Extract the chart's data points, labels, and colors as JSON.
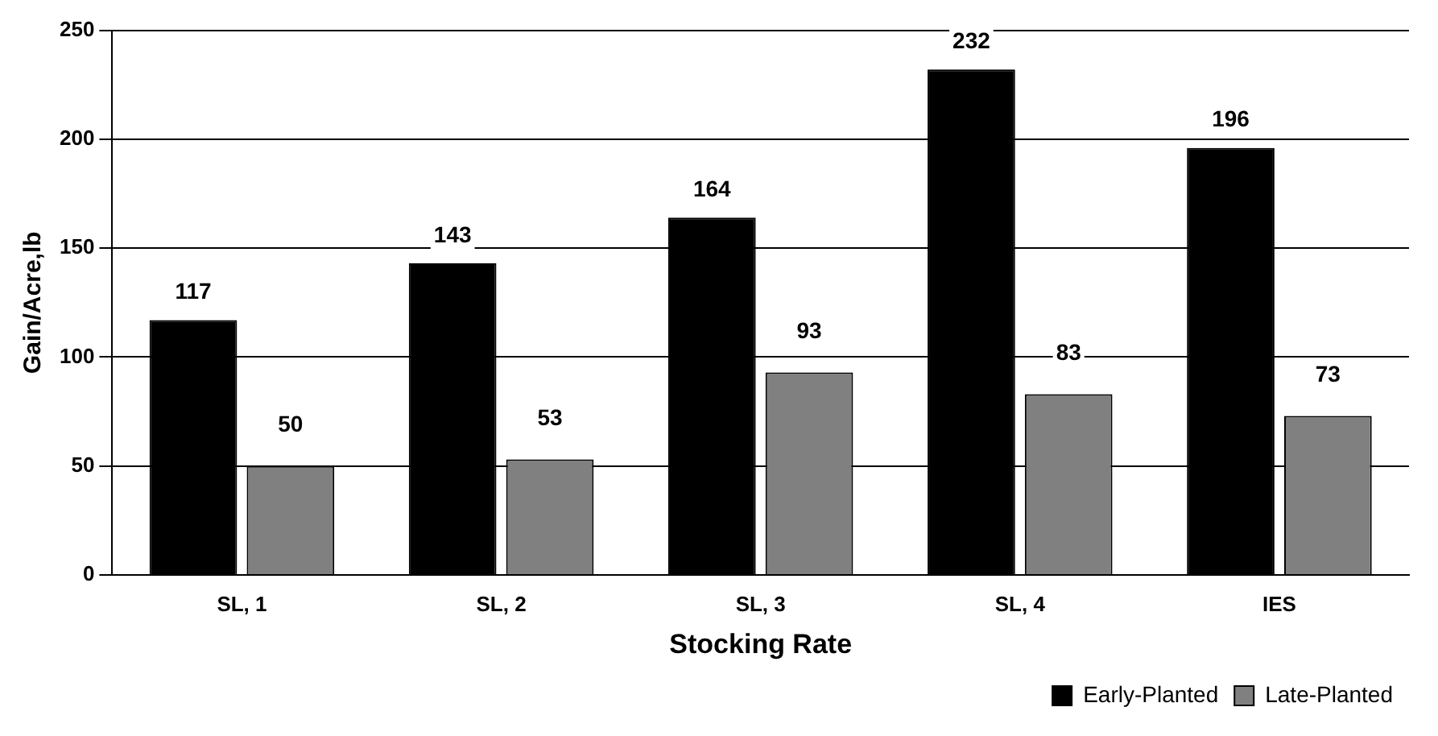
{
  "chart_data": {
    "type": "bar",
    "xlabel": "Stocking Rate",
    "ylabel": "Gain/Acre,lb",
    "categories": [
      "SL, 1",
      "SL, 2",
      "SL, 3",
      "SL, 4",
      "IES"
    ],
    "series": [
      {
        "name": "Early-Planted",
        "color": "#000000",
        "values": [
          117,
          143,
          164,
          232,
          196
        ]
      },
      {
        "name": "Late-Planted",
        "color": "#808080",
        "values": [
          50,
          53,
          93,
          83,
          73
        ]
      }
    ],
    "ylim": [
      0,
      250
    ],
    "yticks": [
      0,
      50,
      100,
      150,
      200,
      250
    ],
    "grid": "y",
    "legend": "bottom right",
    "data_labels": true
  }
}
